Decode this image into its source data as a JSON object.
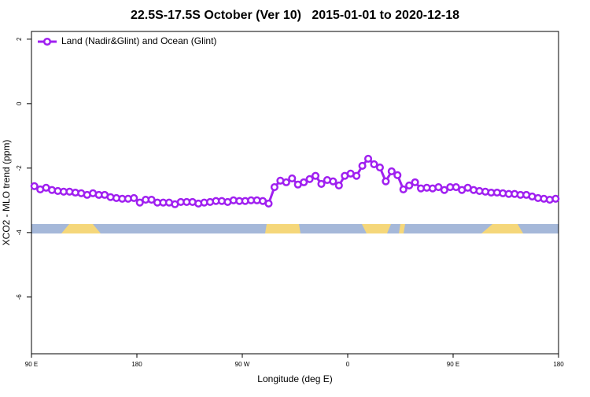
{
  "chart_data": {
    "type": "line",
    "title": "22.5S-17.5S October (Ver 10)   2015-01-01 to 2020-12-18",
    "xlabel": "Longitude (deg E)",
    "ylabel": "XCO2 - MLO trend (ppm)",
    "x": [
      92.5,
      97.5,
      102.5,
      107.5,
      112.5,
      117.5,
      122.5,
      127.5,
      132.5,
      137.5,
      142.5,
      147.5,
      152.5,
      157.5,
      162.5,
      167.5,
      172.5,
      177.5,
      182.5,
      187.5,
      192.5,
      197.5,
      202.5,
      207.5,
      212.5,
      217.5,
      222.5,
      227.5,
      232.5,
      237.5,
      242.5,
      247.5,
      252.5,
      257.5,
      262.5,
      267.5,
      272.5,
      277.5,
      282.5,
      287.5,
      292.5,
      297.5,
      302.5,
      307.5,
      312.5,
      317.5,
      322.5,
      327.5,
      332.5,
      337.5,
      342.5,
      347.5,
      352.5,
      357.5,
      362.5,
      367.5,
      372.5,
      377.5,
      382.5,
      387.5,
      392.5,
      397.5,
      402.5,
      407.5,
      412.5,
      417.5,
      422.5,
      427.5,
      432.5,
      437.5,
      442.5,
      447.5,
      452.5,
      457.5,
      462.5,
      467.5,
      472.5,
      477.5,
      482.5,
      487.5,
      492.5,
      497.5,
      502.5,
      507.5,
      512.5,
      517.5,
      522.5,
      527.5,
      532.5,
      537.5
    ],
    "series": [
      {
        "name": "Land (Nadir&Glint) and Ocean (Glint)",
        "color": "#a020f0",
        "values": [
          -2.56,
          -2.66,
          -2.61,
          -2.68,
          -2.71,
          -2.73,
          -2.73,
          -2.76,
          -2.78,
          -2.83,
          -2.78,
          -2.83,
          -2.83,
          -2.9,
          -2.93,
          -2.95,
          -2.95,
          -2.93,
          -3.07,
          -2.98,
          -2.98,
          -3.07,
          -3.07,
          -3.07,
          -3.12,
          -3.05,
          -3.05,
          -3.05,
          -3.1,
          -3.07,
          -3.05,
          -3.02,
          -3.02,
          -3.05,
          -3.0,
          -3.02,
          -3.02,
          -3.0,
          -3.0,
          -3.02,
          -3.1,
          -2.59,
          -2.39,
          -2.44,
          -2.32,
          -2.51,
          -2.44,
          -2.34,
          -2.24,
          -2.49,
          -2.37,
          -2.41,
          -2.54,
          -2.24,
          -2.17,
          -2.24,
          -1.93,
          -1.71,
          -1.88,
          -1.98,
          -2.41,
          -2.1,
          -2.22,
          -2.66,
          -2.54,
          -2.44,
          -2.63,
          -2.61,
          -2.63,
          -2.59,
          -2.68,
          -2.59,
          -2.59,
          -2.68,
          -2.61,
          -2.68,
          -2.71,
          -2.73,
          -2.76,
          -2.76,
          -2.78,
          -2.8,
          -2.8,
          -2.83,
          -2.83,
          -2.88,
          -2.93,
          -2.95,
          -2.98,
          -2.95
        ]
      }
    ],
    "xlim": [
      90,
      540
    ],
    "xticks": [
      {
        "value": 90,
        "label": "90 E"
      },
      180,
      {
        "value": 270,
        "label": "90 W"
      },
      {
        "value": 360,
        "label": "0"
      },
      {
        "value": 450,
        "label": "90 E"
      },
      {
        "value": 540,
        "label": "180"
      }
    ],
    "ylim": [
      -7.76,
      2.24
    ],
    "yticks": [
      -6,
      -4,
      -2,
      0,
      2
    ],
    "legend": "upper left"
  }
}
